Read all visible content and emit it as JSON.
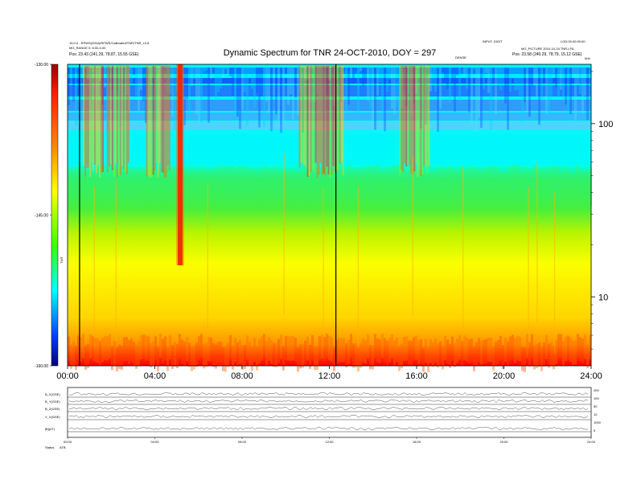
{
  "chart_data": [
    {
      "type": "heatmap",
      "title": "Dynamic Spectrum for TNR 24-OCT-2010, DOY = 297",
      "x_tick_labels": [
        "00:00",
        "04:00",
        "08:00",
        "12:00",
        "16:00",
        "20:00",
        "24:00"
      ],
      "x_ticks_hours": [
        0,
        4,
        8,
        12,
        16,
        20,
        24
      ],
      "xlim_hours": [
        0,
        24
      ],
      "y_scale": "log",
      "y_tick_labels": [
        "100",
        "10"
      ],
      "y_ticks": [
        100,
        10
      ],
      "ylim": [
        4,
        220
      ],
      "colorbar": {
        "tick_labels": [
          "-130.00",
          "-145.00",
          "-160.00"
        ],
        "ticks": [
          -130,
          -145,
          -160
        ],
        "range": [
          -160,
          -130
        ],
        "label": "TNR"
      },
      "vertical_lines_hours": [
        0.55,
        12.3
      ],
      "header_left": [
        "15.0.0 - RPWS(2004)/RPWS/Calibrated/TNR/TNR_L0.8",
        "MG_RANGE 0: 8.00-0.00",
        "Pos: 23.43 (241.29, 78.87, 15.55 GSE)"
      ],
      "header_right": [
        "INPUT: DIGIT",
        "LOD:00:00:00:00",
        "MG_PICTURE 2010-10-24 TNR-LFA",
        "Pos: 23.58 (240.29, 78.79, 15.12 GSE)"
      ],
      "header_mid": "DENSE",
      "header_corner": "kHz"
    },
    {
      "type": "line",
      "row_labels": [
        "B_X(GSE)",
        "B_Y(GSE)",
        "B_Z(GSE)",
        "V_X(GSE)",
        "|B|(nT)"
      ],
      "right_labels": [
        "200",
        "100",
        "50",
        "10",
        "1000",
        "5"
      ],
      "x_tick_labels": [
        "00:00",
        "04:00",
        "08:00",
        "12:00",
        "16:00",
        "20:00",
        "24:00"
      ],
      "footer_label": "Status",
      "footer_value": "ATB"
    }
  ],
  "colors": {
    "colorbar_stops": [
      "#9a0000",
      "#ff0000",
      "#ff8c00",
      "#ffff00",
      "#00ff00",
      "#00ffff",
      "#0000ff",
      "#00007f"
    ],
    "background": "#ffffff"
  }
}
